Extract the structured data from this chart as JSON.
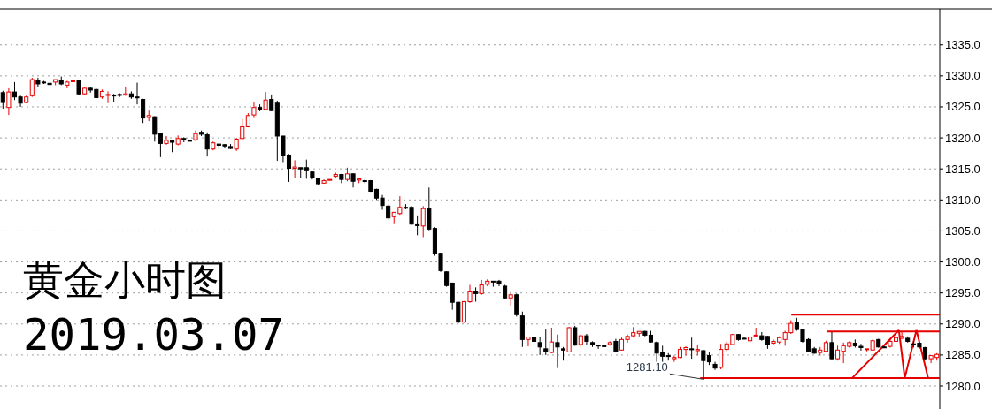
{
  "chart_data": {
    "type": "candlestick",
    "title": "黄金小时图",
    "subtitle": "2019.03.07",
    "categories": [
      null,
      null,
      null,
      null,
      null,
      null,
      null,
      null,
      null,
      null,
      null,
      null,
      null,
      null,
      null,
      null,
      null,
      null,
      null,
      null,
      null,
      null,
      null,
      null,
      null,
      null,
      null,
      null,
      null,
      null,
      null,
      null,
      null,
      null,
      null,
      null,
      null,
      null,
      null,
      null,
      null,
      null,
      null,
      null,
      null,
      null,
      null,
      null,
      null,
      null,
      null,
      null,
      null,
      null,
      null,
      null,
      null,
      null,
      null,
      null,
      null,
      null,
      null,
      null,
      null,
      null,
      null,
      null,
      null,
      null,
      null,
      null,
      null,
      null,
      null,
      null,
      null,
      null,
      null,
      null,
      null,
      null,
      null,
      null,
      null,
      null,
      null,
      null,
      null,
      null,
      null,
      null,
      null,
      null,
      null,
      null,
      null,
      null,
      null,
      null,
      null,
      null,
      null,
      null,
      null,
      null,
      null,
      null,
      null,
      null,
      null,
      null,
      null,
      null,
      null,
      null,
      null,
      null,
      null,
      null,
      null,
      null,
      null,
      null,
      null,
      null,
      null,
      null,
      null,
      null,
      null,
      null,
      null,
      null,
      null,
      null,
      null,
      null,
      null,
      null,
      null,
      null,
      null,
      null,
      null,
      null,
      null,
      null,
      null,
      null,
      null,
      null,
      null,
      null,
      null,
      null,
      null,
      null,
      null,
      null,
      null
    ],
    "ohlc": [
      [
        1327.3,
        1327.6,
        1324.7,
        1325.7
      ],
      [
        1324.9,
        1328.0,
        1323.7,
        1327.4
      ],
      [
        1327.4,
        1329.0,
        1326.1,
        1326.6
      ],
      [
        1326.6,
        1326.8,
        1325.0,
        1325.6
      ],
      [
        1325.7,
        1326.8,
        1325.6,
        1326.6
      ],
      [
        1326.8,
        1329.7,
        1326.6,
        1329.4
      ],
      [
        1329.2,
        1329.7,
        1328.2,
        1328.7
      ],
      [
        1329.0,
        1329.2,
        1328.7,
        1328.9
      ],
      [
        1328.8,
        1328.8,
        1328.6,
        1328.6
      ],
      [
        1329.0,
        1329.4,
        1328.5,
        1329.4
      ],
      [
        1329.2,
        1329.9,
        1328.5,
        1328.7
      ],
      [
        1328.5,
        1329.2,
        1328.0,
        1329.0
      ],
      [
        1329.1,
        1329.3,
        1328.1,
        1329.2
      ],
      [
        1329.3,
        1329.4,
        1326.9,
        1327.1
      ],
      [
        1327.1,
        1328.2,
        1327.0,
        1328.0
      ],
      [
        1328.0,
        1328.2,
        1327.3,
        1327.7
      ],
      [
        1327.8,
        1327.9,
        1326.4,
        1326.5
      ],
      [
        1326.6,
        1327.8,
        1326.3,
        1327.5
      ],
      [
        1326.9,
        1327.5,
        1325.6,
        1327.0
      ],
      [
        1326.9,
        1327.1,
        1325.8,
        1326.8
      ],
      [
        1327.0,
        1327.2,
        1326.6,
        1326.9
      ],
      [
        1326.9,
        1328.2,
        1326.8,
        1327.1
      ],
      [
        1327.1,
        1327.5,
        1326.3,
        1326.6
      ],
      [
        1326.6,
        1328.9,
        1325.4,
        1326.5
      ],
      [
        1326.2,
        1326.3,
        1322.4,
        1323.2
      ],
      [
        1323.3,
        1324.4,
        1322.7,
        1323.6
      ],
      [
        1323.4,
        1323.5,
        1319.4,
        1320.6
      ],
      [
        1320.7,
        1320.8,
        1316.9,
        1319.1
      ],
      [
        1319.1,
        1320.3,
        1318.9,
        1319.6
      ],
      [
        1319.5,
        1319.6,
        1317.7,
        1319.3
      ],
      [
        1319.0,
        1320.4,
        1318.8,
        1319.9
      ],
      [
        1319.9,
        1320.1,
        1319.3,
        1319.7
      ],
      [
        1319.6,
        1319.7,
        1319.5,
        1319.6
      ],
      [
        1319.7,
        1321.2,
        1319.5,
        1320.7
      ],
      [
        1320.9,
        1321.2,
        1320.3,
        1320.6
      ],
      [
        1320.5,
        1320.9,
        1317.0,
        1318.2
      ],
      [
        1318.2,
        1319.4,
        1318.0,
        1319.2
      ],
      [
        1319.0,
        1319.0,
        1318.2,
        1318.8
      ],
      [
        1318.9,
        1319.0,
        1318.3,
        1318.7
      ],
      [
        1318.6,
        1319.0,
        1318.2,
        1318.3
      ],
      [
        1318.2,
        1320.0,
        1317.9,
        1319.8
      ],
      [
        1319.9,
        1323.0,
        1319.8,
        1321.8
      ],
      [
        1321.8,
        1324.0,
        1321.7,
        1323.6
      ],
      [
        1323.7,
        1325.7,
        1323.2,
        1324.9
      ],
      [
        1324.9,
        1325.4,
        1324.3,
        1324.5
      ],
      [
        1324.6,
        1327.4,
        1324.4,
        1326.1
      ],
      [
        1326.2,
        1327.0,
        1324.3,
        1324.4
      ],
      [
        1325.6,
        1326.0,
        1316.3,
        1320.3
      ],
      [
        1320.3,
        1320.3,
        1316.1,
        1317.1
      ],
      [
        1317.1,
        1317.4,
        1312.9,
        1315.1
      ],
      [
        1315.1,
        1316.4,
        1313.6,
        1315.3
      ],
      [
        1315.2,
        1315.2,
        1313.6,
        1315.0
      ],
      [
        1315.2,
        1316.5,
        1313.4,
        1314.7
      ],
      [
        1314.5,
        1314.6,
        1313.3,
        1313.6
      ],
      [
        1313.4,
        1313.5,
        1312.5,
        1312.6
      ],
      [
        1312.7,
        1313.3,
        1312.6,
        1313.1
      ],
      [
        1313.2,
        1313.3,
        1313.1,
        1313.3
      ],
      [
        1313.8,
        1314.4,
        1313.5,
        1314.1
      ],
      [
        1314.1,
        1314.2,
        1312.7,
        1313.3
      ],
      [
        1313.3,
        1315.2,
        1313.0,
        1314.2
      ],
      [
        1314.2,
        1314.3,
        1312.0,
        1313.0
      ],
      [
        1313.2,
        1313.6,
        1312.7,
        1313.4
      ],
      [
        1313.1,
        1313.3,
        1312.7,
        1313.0
      ],
      [
        1313.1,
        1313.2,
        1311.3,
        1311.4
      ],
      [
        1311.7,
        1311.8,
        1310.0,
        1310.3
      ],
      [
        1310.3,
        1310.8,
        1308.4,
        1309.1
      ],
      [
        1309.0,
        1309.3,
        1306.8,
        1307.1
      ],
      [
        1307.3,
        1308.0,
        1306.1,
        1308.0
      ],
      [
        1307.8,
        1310.6,
        1307.6,
        1308.8
      ],
      [
        1308.8,
        1309.3,
        1308.5,
        1308.7
      ],
      [
        1308.8,
        1309.0,
        1306.0,
        1306.1
      ],
      [
        1306.0,
        1307.5,
        1304.3,
        1305.9
      ],
      [
        1305.8,
        1309.0,
        1304.0,
        1308.6
      ],
      [
        1308.6,
        1312.0,
        1305.1,
        1305.3
      ],
      [
        1305.4,
        1305.6,
        1301.0,
        1301.4
      ],
      [
        1301.4,
        1301.5,
        1298.4,
        1298.6
      ],
      [
        1298.4,
        1298.5,
        1296.0,
        1296.2
      ],
      [
        1296.6,
        1296.6,
        1292.3,
        1293.5
      ],
      [
        1293.5,
        1293.6,
        1290.1,
        1290.3
      ],
      [
        1290.3,
        1293.7,
        1290.2,
        1293.6
      ],
      [
        1293.6,
        1296.3,
        1293.4,
        1295.3
      ],
      [
        1295.3,
        1295.9,
        1293.6,
        1294.9
      ],
      [
        1294.9,
        1297.1,
        1294.7,
        1296.3
      ],
      [
        1296.4,
        1297.2,
        1296.1,
        1296.9
      ],
      [
        1296.9,
        1296.9,
        1296.0,
        1296.8
      ],
      [
        1296.9,
        1297.1,
        1296.1,
        1296.5
      ],
      [
        1296.1,
        1296.3,
        1294.0,
        1294.2
      ],
      [
        1294.2,
        1295.0,
        1293.0,
        1294.7
      ],
      [
        1294.7,
        1294.9,
        1291.2,
        1291.5
      ],
      [
        1291.3,
        1292.0,
        1286.3,
        1287.5
      ],
      [
        1287.5,
        1287.9,
        1286.4,
        1287.9
      ],
      [
        1287.9,
        1288.0,
        1286.7,
        1287.2
      ],
      [
        1287.0,
        1287.9,
        1285.0,
        1286.3
      ],
      [
        1286.0,
        1289.1,
        1285.0,
        1285.5
      ],
      [
        1285.4,
        1289.4,
        1285.3,
        1287.1
      ],
      [
        1287.0,
        1288.3,
        1282.9,
        1286.3
      ],
      [
        1286.0,
        1286.3,
        1284.1,
        1285.8
      ],
      [
        1285.5,
        1289.5,
        1285.4,
        1289.4
      ],
      [
        1289.4,
        1289.7,
        1286.5,
        1286.6
      ],
      [
        1286.7,
        1288.4,
        1286.2,
        1288.1
      ],
      [
        1288.1,
        1288.4,
        1286.7,
        1287.2
      ],
      [
        1287.0,
        1287.2,
        1286.3,
        1286.7
      ],
      [
        1286.6,
        1286.7,
        1286.0,
        1286.5
      ],
      [
        1286.5,
        1286.6,
        1286.4,
        1286.5
      ],
      [
        1286.7,
        1287.2,
        1286.5,
        1287.0
      ],
      [
        1287.2,
        1287.6,
        1285.4,
        1285.6
      ],
      [
        1285.8,
        1287.8,
        1285.7,
        1287.5
      ],
      [
        1287.5,
        1288.3,
        1287.0,
        1288.0
      ],
      [
        1288.1,
        1289.5,
        1287.8,
        1288.6
      ],
      [
        1288.5,
        1288.8,
        1288.0,
        1288.8
      ],
      [
        1288.8,
        1288.9,
        1288.0,
        1288.2
      ],
      [
        1288.2,
        1288.9,
        1287.0,
        1287.1
      ],
      [
        1287.0,
        1287.2,
        1283.9,
        1285.3
      ],
      [
        1285.4,
        1286.5,
        1283.9,
        1284.8
      ],
      [
        1284.9,
        1285.3,
        1284.1,
        1284.8
      ],
      [
        1284.4,
        1284.9,
        1283.9,
        1284.6
      ],
      [
        1284.6,
        1286.3,
        1284.5,
        1285.9
      ],
      [
        1285.9,
        1286.4,
        1284.9,
        1286.2
      ],
      [
        1286.0,
        1287.8,
        1284.4,
        1285.9
      ],
      [
        1285.7,
        1286.7,
        1284.9,
        1285.9
      ],
      [
        1285.7,
        1285.8,
        1281.1,
        1284.1
      ],
      [
        1284.9,
        1285.4,
        1283.4,
        1283.9
      ],
      [
        1283.5,
        1283.9,
        1282.6,
        1282.9
      ],
      [
        1283.0,
        1286.8,
        1282.7,
        1285.9
      ],
      [
        1285.9,
        1287.2,
        1285.6,
        1286.8
      ],
      [
        1286.7,
        1288.4,
        1286.6,
        1288.3
      ],
      [
        1288.3,
        1288.4,
        1287.3,
        1287.5
      ],
      [
        1287.7,
        1287.8,
        1287.6,
        1287.7
      ],
      [
        1287.3,
        1288.1,
        1287.0,
        1287.9
      ],
      [
        1288.1,
        1289.4,
        1288.1,
        1288.2
      ],
      [
        1288.1,
        1288.7,
        1287.3,
        1287.5
      ],
      [
        1288.0,
        1288.1,
        1286.0,
        1286.7
      ],
      [
        1286.9,
        1287.5,
        1286.7,
        1287.2
      ],
      [
        1287.1,
        1288.0,
        1286.8,
        1287.8
      ],
      [
        1287.5,
        1288.9,
        1286.5,
        1288.6
      ],
      [
        1288.6,
        1290.6,
        1288.4,
        1290.1
      ],
      [
        1290.3,
        1291.0,
        1288.9,
        1289.1
      ],
      [
        1289.1,
        1289.2,
        1287.0,
        1287.2
      ],
      [
        1287.5,
        1287.7,
        1285.5,
        1285.6
      ],
      [
        1286.0,
        1286.3,
        1285.2,
        1285.3
      ],
      [
        1285.4,
        1286.3,
        1284.9,
        1285.8
      ],
      [
        1285.6,
        1287.3,
        1285.5,
        1287.0
      ],
      [
        1287.0,
        1288.7,
        1284.3,
        1284.4
      ],
      [
        1284.4,
        1286.5,
        1284.1,
        1285.8
      ],
      [
        1285.6,
        1287.0,
        1283.7,
        1286.5
      ],
      [
        1286.4,
        1287.2,
        1286.2,
        1287.0
      ],
      [
        1286.9,
        1287.5,
        1286.2,
        1286.5
      ],
      [
        1286.4,
        1286.8,
        1285.7,
        1286.2
      ],
      [
        1285.9,
        1286.0,
        1285.6,
        1286.0
      ],
      [
        1285.8,
        1287.5,
        1285.7,
        1287.3
      ],
      [
        1287.5,
        1287.6,
        1286.2,
        1286.3
      ],
      [
        1286.3,
        1286.4,
        1286.2,
        1286.3
      ],
      [
        1286.4,
        1287.6,
        1286.2,
        1287.2
      ],
      [
        1287.2,
        1288.7,
        1287.0,
        1287.8
      ],
      [
        1287.7,
        1288.7,
        1287.6,
        1288.0
      ],
      [
        1287.7,
        1288.0,
        1287.0,
        1287.2
      ],
      [
        1286.8,
        1287.2,
        1286.2,
        1286.7
      ],
      [
        1286.9,
        1287.0,
        1286.0,
        1286.3
      ],
      [
        1286.2,
        1286.3,
        1284.3,
        1284.4
      ],
      [
        1284.4,
        1284.9,
        1283.7,
        1284.9
      ],
      [
        1284.6,
        1285.3,
        1284.1,
        1285.1
      ]
    ],
    "ylim": [
      1276.3,
      1340.8
    ],
    "yticks": [
      {
        "value": 1280,
        "label": "1280.0"
      },
      {
        "value": 1285,
        "label": "1285.0"
      },
      {
        "value": 1290,
        "label": "1290.0"
      },
      {
        "value": 1295,
        "label": "1295.0"
      },
      {
        "value": 1300,
        "label": "1300.0"
      },
      {
        "value": 1305,
        "label": "1305.0"
      },
      {
        "value": 1310,
        "label": "1310.0"
      },
      {
        "value": 1315,
        "label": "1315.0"
      },
      {
        "value": 1320,
        "label": "1320.0"
      },
      {
        "value": 1325,
        "label": "1325.0"
      },
      {
        "value": 1330,
        "label": "1330.0"
      },
      {
        "value": 1335,
        "label": "1335.0"
      }
    ],
    "grid": "y",
    "tick_labels": "y",
    "ref_lines": [
      {
        "axis": "y",
        "value": 1291.5,
        "color": "#e60000"
      },
      {
        "axis": "y",
        "value": 1288.8,
        "color": "#e60000"
      },
      {
        "axis": "y",
        "value": 1281.3,
        "color": "#e60000"
      }
    ],
    "annotations": [
      "1281.10"
    ]
  }
}
